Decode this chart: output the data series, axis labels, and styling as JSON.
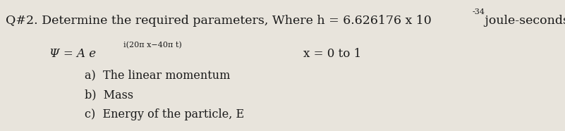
{
  "bg_color": "#e8e4dc",
  "text_color": "#1a1a1a",
  "title_main": "Q#2. Determine the required parameters, Where h = 6.626176 x 10",
  "title_exp": "-34",
  "title_end": " joule-seconds",
  "psi_base": "Ψ = A e",
  "psi_sup": "i(20π x−40π t)",
  "x_range": "x = 0 to 1",
  "item_a": "a)  The linear momentum",
  "item_b": "b)  Mass",
  "item_c": "c)  Energy of the particle, E",
  "fs_title": 12.5,
  "fs_body": 11.5,
  "fs_sup": 8.0,
  "fs_psi": 12.0,
  "fs_psi_sup": 8.0
}
